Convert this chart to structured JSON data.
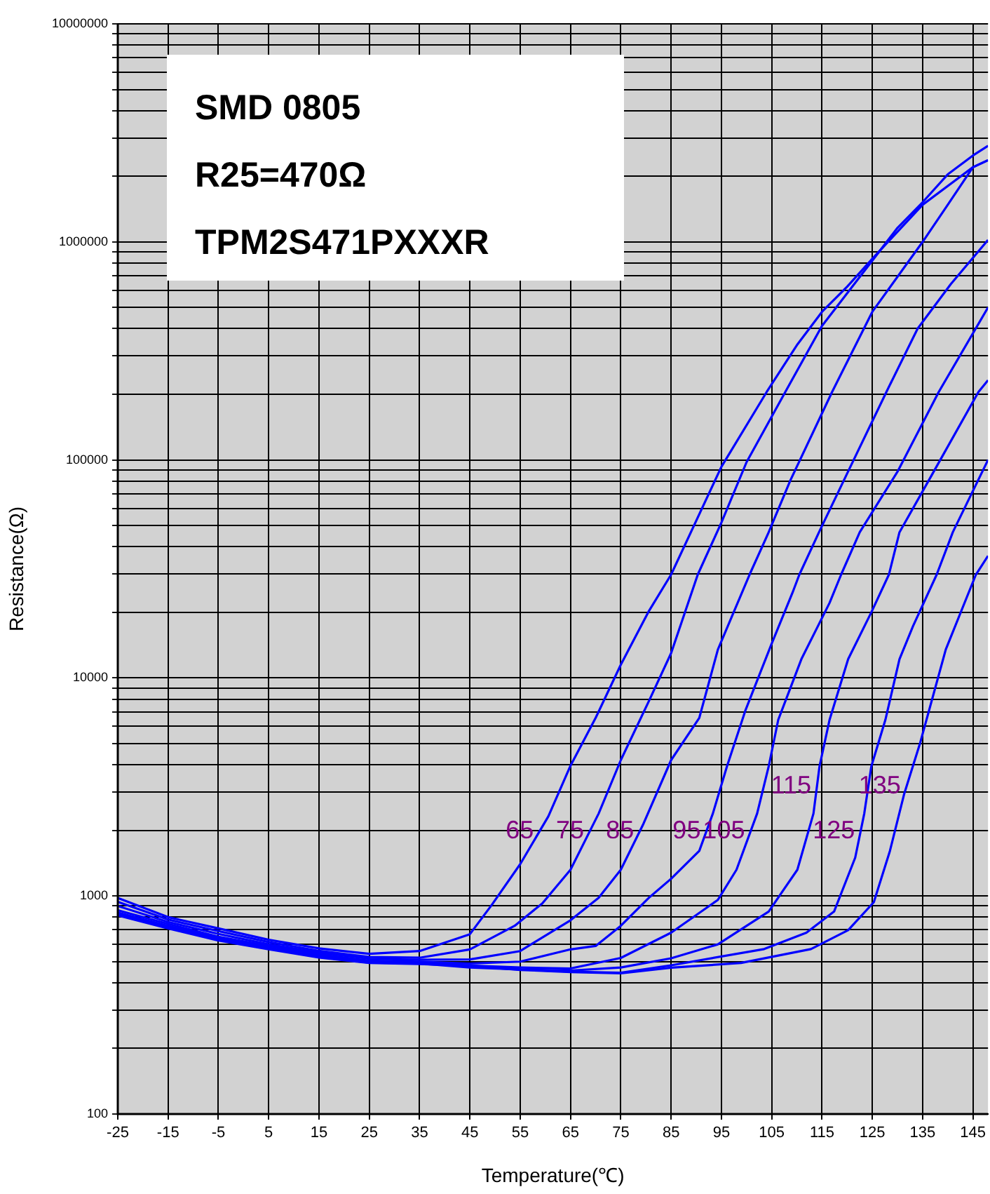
{
  "chart_data": {
    "type": "line",
    "title": "SMD 0805",
    "subtitle": "R25=470Ω",
    "xlabel": "Temperature(℃)",
    "ylabel": "Resistance(Ω)",
    "log": "y",
    "grid": true,
    "marker": "none",
    "xlim": [
      -25,
      148
    ],
    "xticks": [
      -25,
      -15,
      -5,
      5,
      15,
      25,
      35,
      45,
      55,
      65,
      75,
      85,
      95,
      105,
      115,
      125,
      135,
      145
    ],
    "ylim": [
      100,
      10000000
    ],
    "yticks": [
      100,
      {
        "value": 200,
        "label": null
      },
      {
        "value": 300,
        "label": null
      },
      {
        "value": 400,
        "label": null
      },
      {
        "value": 500,
        "label": null
      },
      {
        "value": 600,
        "label": null
      },
      {
        "value": 700,
        "label": null
      },
      {
        "value": 800,
        "label": null
      },
      {
        "value": 900,
        "label": null
      },
      1000,
      {
        "value": 2000,
        "label": null
      },
      {
        "value": 3000,
        "label": null
      },
      {
        "value": 4000,
        "label": null
      },
      {
        "value": 5000,
        "label": null
      },
      {
        "value": 6000,
        "label": null
      },
      {
        "value": 7000,
        "label": null
      },
      {
        "value": 8000,
        "label": null
      },
      {
        "value": 9000,
        "label": null
      },
      10000,
      {
        "value": 20000,
        "label": null
      },
      {
        "value": 30000,
        "label": null
      },
      {
        "value": 40000,
        "label": null
      },
      {
        "value": 50000,
        "label": null
      },
      {
        "value": 60000,
        "label": null
      },
      {
        "value": 70000,
        "label": null
      },
      {
        "value": 80000,
        "label": null
      },
      {
        "value": 90000,
        "label": null
      },
      100000,
      {
        "value": 200000,
        "label": null
      },
      {
        "value": 300000,
        "label": null
      },
      {
        "value": 400000,
        "label": null
      },
      {
        "value": 500000,
        "label": null
      },
      {
        "value": 600000,
        "label": null
      },
      {
        "value": 700000,
        "label": null
      },
      {
        "value": 800000,
        "label": null
      },
      {
        "value": 900000,
        "label": null
      },
      1000000,
      {
        "value": 2000000,
        "label": null
      },
      {
        "value": 3000000,
        "label": null
      },
      {
        "value": 4000000,
        "label": null
      },
      {
        "value": 5000000,
        "label": null
      },
      {
        "value": 6000000,
        "label": null
      },
      {
        "value": 7000000,
        "label": null
      },
      {
        "value": 8000000,
        "label": null
      },
      {
        "value": 9000000,
        "label": null
      },
      10000000
    ],
    "series": [
      {
        "name": "65",
        "color": "#0000ff",
        "x": [
          -25,
          -15,
          -5,
          5,
          15,
          25,
          35,
          45,
          49.4,
          55,
          60.6,
          65,
          70,
          75,
          80.6,
          85,
          95,
          104,
          110,
          115,
          120,
          125,
          135,
          145,
          148
        ],
        "values": [
          980,
          800,
          710,
          630,
          575,
          543,
          559,
          668,
          914,
          1400,
          2320,
          3960,
          6560,
          11500,
          20300,
          29800,
          93000,
          205000,
          336000,
          478000,
          623000,
          837000,
          1480000,
          2200000,
          2370000
        ]
      },
      {
        "name": "75",
        "color": "#0000ff",
        "x": [
          -25,
          -15,
          -5,
          5,
          15,
          25,
          35,
          45,
          53.9,
          59.4,
          65,
          70.6,
          75,
          80.6,
          85,
          90.3,
          95,
          100,
          107.7,
          115,
          125,
          130,
          135,
          140,
          145,
          148
        ],
        "values": [
          940,
          780,
          690,
          615,
          560,
          525,
          521,
          569,
          730,
          925,
          1320,
          2390,
          4200,
          7850,
          13000,
          29800,
          51600,
          97700,
          205000,
          412000,
          820000,
          1160000,
          1520000,
          2040000,
          2490000,
          2760000
        ]
      },
      {
        "name": "85",
        "color": "#0000ff",
        "x": [
          -25,
          -15,
          -5,
          5,
          15,
          25,
          35,
          45,
          55,
          65,
          70.6,
          75,
          79.4,
          85,
          90.6,
          94.3,
          100.6,
          104.4,
          108.7,
          117,
          125,
          135,
          140,
          145,
          148
        ],
        "values": [
          900,
          760,
          670,
          600,
          550,
          515,
          510,
          512,
          559,
          774,
          982,
          1320,
          2120,
          4200,
          6560,
          13500,
          29800,
          46600,
          80500,
          205000,
          478000,
          1000000,
          1480000,
          2200000,
          2370000
        ]
      },
      {
        "name": "95",
        "color": "#0000ff",
        "x": [
          -25,
          -15,
          -5,
          5,
          15,
          25,
          35,
          45,
          55,
          65,
          70,
          75,
          80.6,
          85,
          90.6,
          93.3,
          96.1,
          99.8,
          104.9,
          109.1,
          110.5,
          114.4,
          120,
          127.8,
          134,
          140.6,
          148
        ],
        "values": [
          860,
          745,
          650,
          590,
          540,
          505,
          500,
          490,
          500,
          569,
          590,
          730,
          982,
          1200,
          1610,
          2390,
          3930,
          7130,
          14200,
          24500,
          29800,
          46600,
          86700,
          205000,
          400000,
          640000,
          1020000
        ]
      },
      {
        "name": "105",
        "color": "#0000ff",
        "x": [
          -25,
          -15,
          -5,
          5,
          15,
          25,
          35,
          45,
          55,
          65,
          75,
          85,
          94.3,
          98,
          102.1,
          104.4,
          106.3,
          110.9,
          116.5,
          118.8,
          122.5,
          130,
          138.2,
          148
        ],
        "values": [
          840,
          730,
          640,
          580,
          530,
          500,
          495,
          480,
          470,
          465,
          520,
          679,
          960,
          1320,
          2390,
          3930,
          6430,
          12200,
          22100,
          29800,
          46600,
          88300,
          205000,
          500000
        ]
      },
      {
        "name": "115",
        "color": "#0000ff",
        "x": [
          -25,
          -15,
          -5,
          5,
          15,
          25,
          35,
          45,
          55,
          65,
          75,
          85,
          94.3,
          104.4,
          110.1,
          113.3,
          114.5,
          116.5,
          120.2,
          124.8,
          128.3,
          130.4,
          137,
          146.1,
          148
        ],
        "values": [
          830,
          720,
          635,
          575,
          527,
          497,
          490,
          470,
          460,
          455,
          470,
          518,
          600,
          849,
          1320,
          2390,
          3930,
          6430,
          12200,
          20000,
          29800,
          46600,
          86700,
          205000,
          232000
        ]
      },
      {
        "name": "125",
        "color": "#0000ff",
        "x": [
          -25,
          -15,
          -5,
          5,
          15,
          25,
          35,
          45,
          55,
          65,
          75,
          85,
          103.5,
          111.9,
          117.4,
          121.6,
          123.4,
          124.8,
          127.6,
          130.4,
          133.1,
          137.8,
          141,
          148
        ],
        "values": [
          820,
          715,
          630,
          575,
          525,
          495,
          490,
          480,
          460,
          450,
          445,
          481,
          571,
          679,
          849,
          1500,
          2390,
          3930,
          6430,
          12200,
          17300,
          29800,
          46600,
          100000
        ]
      },
      {
        "name": "135",
        "color": "#0000ff",
        "x": [
          -25,
          -15,
          -5,
          5,
          15,
          25,
          35,
          45,
          55,
          65,
          75,
          85,
          98.9,
          112.8,
          120.2,
          125.3,
          128.5,
          131.3,
          134.5,
          139.6,
          145.6,
          148
        ],
        "values": [
          815,
          710,
          625,
          570,
          522,
          493,
          488,
          478,
          458,
          448,
          442,
          469,
          493,
          571,
          697,
          937,
          1610,
          2920,
          5030,
          13500,
          29800,
          36300
        ]
      }
    ],
    "annotations": [
      "TPM2S471PXXXR"
    ]
  }
}
